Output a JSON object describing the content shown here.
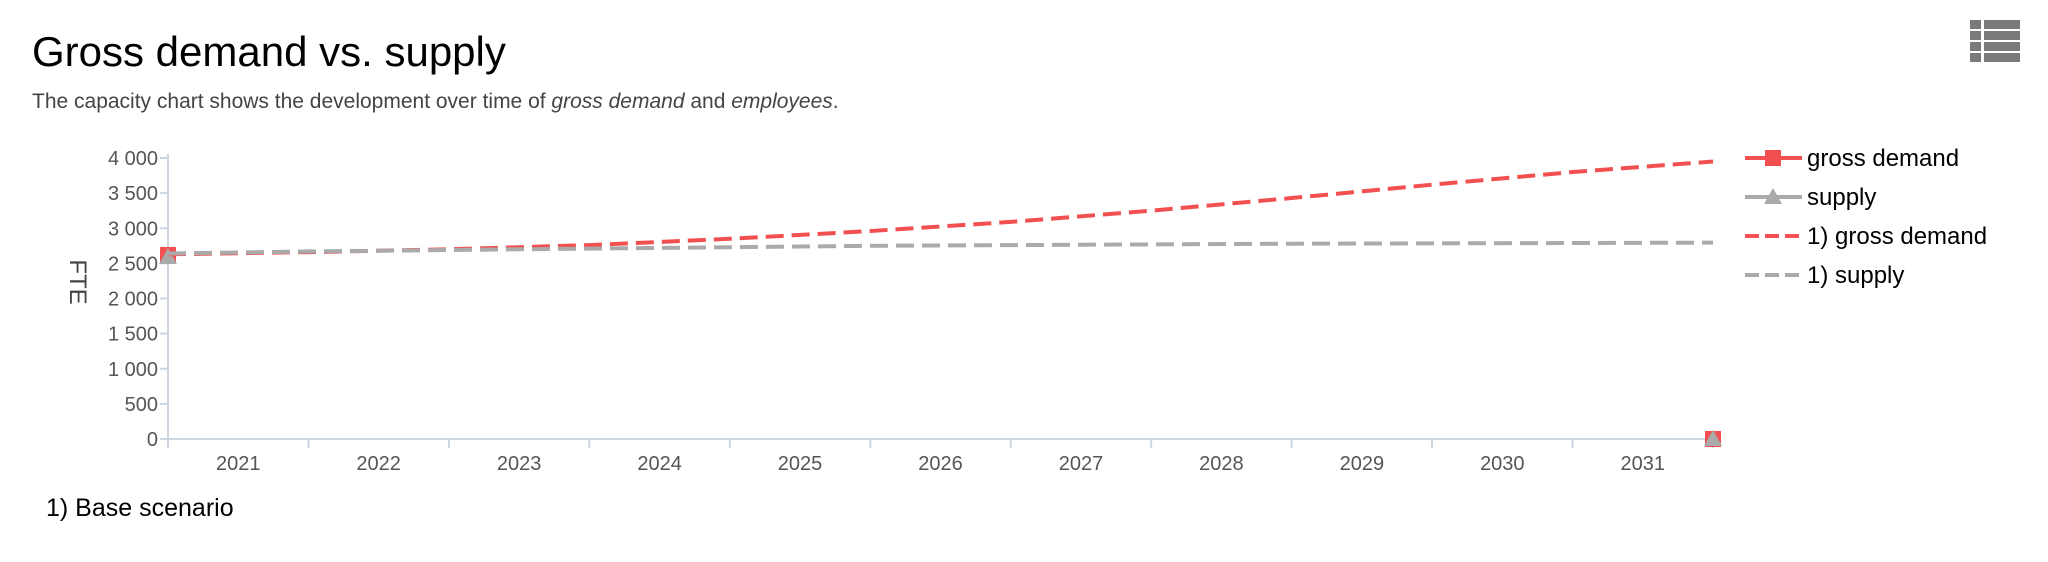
{
  "header": {
    "title": "Gross demand vs. supply",
    "subtitle_prefix": "The capacity chart shows the development over time of ",
    "subtitle_term1": "gross demand",
    "subtitle_mid": " and ",
    "subtitle_term2": "employees",
    "subtitle_suffix": "."
  },
  "menu_icon": "list-menu-icon",
  "footnote": "1) Base scenario",
  "colors": {
    "demand": "#f25050",
    "supply": "#aaaaaa",
    "axis": "#ccd6e0"
  },
  "chart_data": {
    "type": "line",
    "ylabel": "FTE",
    "ylim": [
      0,
      4000
    ],
    "yticks": [
      0,
      500,
      1000,
      1500,
      2000,
      2500,
      3000,
      3500,
      4000
    ],
    "ytick_labels": [
      "0",
      "500",
      "1 000",
      "1 500",
      "2 000",
      "2 500",
      "3 000",
      "3 500",
      "4 000"
    ],
    "categories": [
      "2021",
      "2022",
      "2023",
      "2024",
      "2025",
      "2026",
      "2027",
      "2028",
      "2029",
      "2030",
      "2031"
    ],
    "xlim": [
      2020.5,
      2031.5
    ],
    "legend_position": "right",
    "series": [
      {
        "name": "gross demand",
        "style": "solid",
        "marker": "square",
        "color": "#f25050",
        "points": [
          [
            2020.5,
            2620
          ],
          [
            2031.5,
            0
          ]
        ]
      },
      {
        "name": "supply",
        "style": "solid",
        "marker": "triangle",
        "color": "#aaaaaa",
        "points": [
          [
            2020.5,
            2590
          ],
          [
            2031.5,
            0
          ]
        ]
      },
      {
        "name": "1) gross demand",
        "style": "dashed",
        "marker": "none",
        "color": "#f25050",
        "points": [
          [
            2020.5,
            2630
          ],
          [
            2021.5,
            2660
          ],
          [
            2022.5,
            2700
          ],
          [
            2023.5,
            2760
          ],
          [
            2024.5,
            2850
          ],
          [
            2025.5,
            2960
          ],
          [
            2026.5,
            3090
          ],
          [
            2027.5,
            3250
          ],
          [
            2028.5,
            3430
          ],
          [
            2029.5,
            3620
          ],
          [
            2030.5,
            3800
          ],
          [
            2031.5,
            3950
          ]
        ]
      },
      {
        "name": "1) supply",
        "style": "dashed",
        "marker": "none",
        "color": "#aaaaaa",
        "points": [
          [
            2020.5,
            2640
          ],
          [
            2021.5,
            2670
          ],
          [
            2022.5,
            2690
          ],
          [
            2023.5,
            2710
          ],
          [
            2024.5,
            2730
          ],
          [
            2025.5,
            2750
          ],
          [
            2026.5,
            2760
          ],
          [
            2027.5,
            2770
          ],
          [
            2028.5,
            2780
          ],
          [
            2029.5,
            2785
          ],
          [
            2030.5,
            2790
          ],
          [
            2031.5,
            2795
          ]
        ]
      }
    ]
  }
}
